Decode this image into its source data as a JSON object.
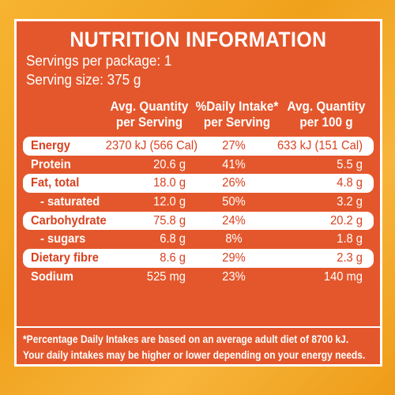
{
  "title": "NUTRITION INFORMATION",
  "servings_per_package": "Servings per package: 1",
  "serving_size": "Serving size: 375 g",
  "headers": {
    "per_serving_line1": "Avg. Quantity",
    "per_serving_line2": "per Serving",
    "daily_intake_line1": "%Daily Intake*",
    "daily_intake_line2": "per Serving",
    "per_100g_line1": "Avg. Quantity",
    "per_100g_line2": "per 100 g"
  },
  "rows": [
    {
      "label": "Energy",
      "per_serving": "2370 kJ (566 Cal)",
      "daily_intake": "27%",
      "per_100g": "633 kJ (151 Cal)"
    },
    {
      "label": "Protein",
      "per_serving": "20.6 g",
      "daily_intake": "41%",
      "per_100g": "5.5 g"
    },
    {
      "label": "Fat, total",
      "per_serving": "18.0 g",
      "daily_intake": "26%",
      "per_100g": "4.8 g"
    },
    {
      "label": "- saturated",
      "per_serving": "12.0 g",
      "daily_intake": "50%",
      "per_100g": "3.2 g"
    },
    {
      "label": "Carbohydrate",
      "per_serving": "75.8 g",
      "daily_intake": "24%",
      "per_100g": "20.2 g"
    },
    {
      "label": "- sugars",
      "per_serving": "6.8 g",
      "daily_intake": "8%",
      "per_100g": "1.8 g"
    },
    {
      "label": "Dietary fibre",
      "per_serving": "8.6 g",
      "daily_intake": "29%",
      "per_100g": "2.3 g"
    },
    {
      "label": "Sodium",
      "per_serving": "525 mg",
      "daily_intake": "23%",
      "per_100g": "140 mg"
    }
  ],
  "footnote_line1": "*Percentage Daily Intakes are based on an average adult diet of 8700 kJ.",
  "footnote_line2": "Your daily intakes may be higher or lower depending on your energy needs.",
  "colors": {
    "panel": "#e4572c",
    "background": "#f2a21f",
    "text_on_white": "#d9401e",
    "white": "#ffffff"
  }
}
